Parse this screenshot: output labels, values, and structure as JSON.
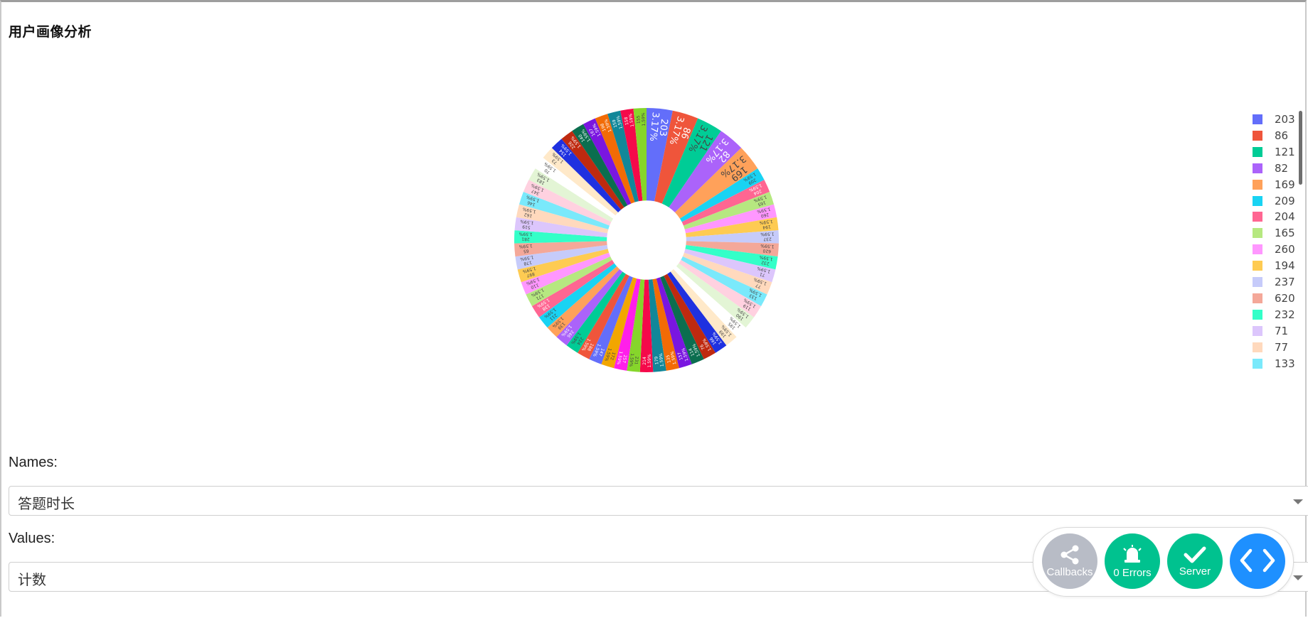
{
  "page": {
    "title": "用户画像分析"
  },
  "chart_data": {
    "type": "pie",
    "hole": 0.3,
    "pct_label": "1.59%",
    "big_pct_label": "3.17%",
    "slices": [
      {
        "label": "203",
        "value": 2,
        "color": "#636efa"
      },
      {
        "label": "86",
        "value": 2,
        "color": "#ef553b"
      },
      {
        "label": "121",
        "value": 2,
        "color": "#00cc96"
      },
      {
        "label": "82",
        "value": 2,
        "color": "#ab63fa"
      },
      {
        "label": "169",
        "value": 2,
        "color": "#ffa15a"
      },
      {
        "label": "209",
        "value": 1,
        "color": "#19d3f3"
      },
      {
        "label": "204",
        "value": 1,
        "color": "#ff6692"
      },
      {
        "label": "165",
        "value": 1,
        "color": "#b6e880"
      },
      {
        "label": "260",
        "value": 1,
        "color": "#ff97ff"
      },
      {
        "label": "194",
        "value": 1,
        "color": "#fecb52"
      },
      {
        "label": "237",
        "value": 1,
        "color": "#c6cbfa"
      },
      {
        "label": "620",
        "value": 1,
        "color": "#f4a899"
      },
      {
        "label": "232",
        "value": 1,
        "color": "#33ffc8"
      },
      {
        "label": "71",
        "value": 1,
        "color": "#dcc6fc"
      },
      {
        "label": "77",
        "value": 1,
        "color": "#ffd9bd"
      },
      {
        "label": "133",
        "value": 1,
        "color": "#7ae9fb"
      },
      {
        "label": "119",
        "value": 1,
        "color": "#ffd1e0"
      },
      {
        "label": "190",
        "value": 1,
        "color": "#e3f5d5"
      },
      {
        "label": "195",
        "value": 1,
        "color": "#ffffff"
      },
      {
        "label": "199",
        "value": 1,
        "color": "#ffe9c9"
      },
      {
        "label": "166",
        "value": 1,
        "color": "#1f31e0"
      },
      {
        "label": "76",
        "value": 1,
        "color": "#bf2a10"
      },
      {
        "label": "114",
        "value": 1,
        "color": "#0b6e4f"
      },
      {
        "label": "157",
        "value": 1,
        "color": "#7a16e0"
      },
      {
        "label": "135",
        "value": 1,
        "color": "#f26b06"
      },
      {
        "label": "179",
        "value": 1,
        "color": "#118799"
      },
      {
        "label": "214",
        "value": 1,
        "color": "#f5094a"
      },
      {
        "label": "231",
        "value": 1,
        "color": "#86d62b"
      },
      {
        "label": "257",
        "value": 1,
        "color": "#ff1fea"
      },
      {
        "label": "172",
        "value": 1,
        "color": "#f2a600"
      },
      {
        "label": "147",
        "value": 1,
        "color": "#636efa"
      },
      {
        "label": "188",
        "value": 1,
        "color": "#ef553b"
      },
      {
        "label": "224",
        "value": 1,
        "color": "#00cc96"
      },
      {
        "label": "246",
        "value": 1,
        "color": "#ab63fa"
      },
      {
        "label": "139",
        "value": 1,
        "color": "#ffa15a"
      },
      {
        "label": "211",
        "value": 1,
        "color": "#19d3f3"
      },
      {
        "label": "138",
        "value": 1,
        "color": "#ff6692"
      },
      {
        "label": "171",
        "value": 1,
        "color": "#b6e880"
      },
      {
        "label": "110",
        "value": 1,
        "color": "#ff97ff"
      },
      {
        "label": "897",
        "value": 1,
        "color": "#fecb52"
      },
      {
        "label": "178",
        "value": 1,
        "color": "#c6cbfa"
      },
      {
        "label": "65",
        "value": 1,
        "color": "#f4a899"
      },
      {
        "label": "281",
        "value": 1,
        "color": "#33ffc8"
      },
      {
        "label": "519",
        "value": 1,
        "color": "#dcc6fc"
      },
      {
        "label": "162",
        "value": 1,
        "color": "#ffd9bd"
      },
      {
        "label": "146",
        "value": 1,
        "color": "#7ae9fb"
      },
      {
        "label": "347",
        "value": 1,
        "color": "#ffd1e0"
      },
      {
        "label": "183",
        "value": 1,
        "color": "#e3f5d5"
      },
      {
        "label": "70",
        "value": 1,
        "color": "#ffffff"
      },
      {
        "label": "73",
        "value": 1,
        "color": "#ffe9c9"
      },
      {
        "label": "154",
        "value": 1,
        "color": "#1f31e0"
      },
      {
        "label": "226",
        "value": 1,
        "color": "#bf2a10"
      },
      {
        "label": "140",
        "value": 1,
        "color": "#0b6e4f"
      },
      {
        "label": "167",
        "value": 1,
        "color": "#7a16e0"
      },
      {
        "label": "198",
        "value": 1,
        "color": "#f26b06"
      },
      {
        "label": "159",
        "value": 1,
        "color": "#118799"
      },
      {
        "label": "158",
        "value": 1,
        "color": "#f5094a"
      },
      {
        "label": "155",
        "value": 1,
        "color": "#86d62b"
      }
    ],
    "legend_visible": [
      "203",
      "86",
      "121",
      "82",
      "169",
      "209",
      "204",
      "165",
      "260",
      "194",
      "237",
      "620",
      "232",
      "71",
      "77",
      "133"
    ]
  },
  "controls": {
    "names_label": "Names:",
    "names_value": "答题时长",
    "values_label": "Values:",
    "values_value": "计数"
  },
  "debug": {
    "callbacks_label": "Callbacks",
    "errors_label": "0 Errors",
    "server_label": "Server",
    "callbacks_color": "#b8bcc6",
    "errors_color": "#00c28f",
    "server_color": "#00c28f",
    "code_color": "#1e90ff"
  }
}
